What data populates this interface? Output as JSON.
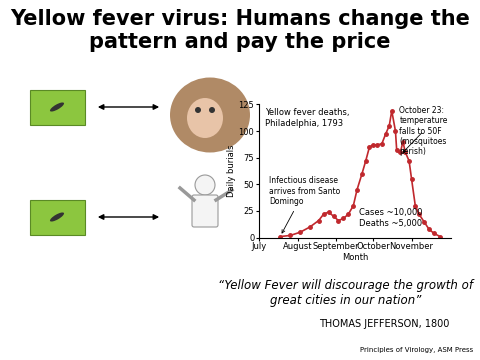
{
  "slide": {
    "title": "Yellow fever virus: Humans change the pattern and pay the price",
    "quote": "“Yellow Fever will discourage the growth of great cities in our nation”",
    "attribution": "THOMAS JEFFERSON, 1800",
    "credit": "Principles of Virology, ASM Press"
  },
  "chart_data": {
    "type": "line",
    "title": "Yellow fever deaths, Philadelphia, 1793",
    "x_label": "Month",
    "y_label": "Daily burials",
    "x": [
      17,
      25,
      33,
      41,
      48,
      52,
      56,
      60,
      64,
      68,
      72,
      76,
      79,
      83,
      86,
      89,
      92,
      95,
      99,
      102,
      105,
      107,
      110,
      111,
      114,
      116,
      118,
      121,
      123,
      126,
      129,
      133,
      137,
      141,
      146
    ],
    "values": [
      1,
      2,
      5,
      10,
      16,
      22,
      24,
      20,
      16,
      18,
      22,
      30,
      45,
      60,
      72,
      85,
      87,
      87,
      88,
      97,
      105,
      119,
      100,
      82,
      80,
      90,
      80,
      72,
      55,
      30,
      22,
      15,
      8,
      4,
      1
    ],
    "color": "#c0282d",
    "marker": "circle",
    "line_style": "solid",
    "xlim": [
      0,
      155
    ],
    "xticks": [
      {
        "value": 0,
        "label": "July"
      },
      {
        "value": 31,
        "label": "August"
      },
      {
        "value": 62,
        "label": "September"
      },
      {
        "value": 92,
        "label": "October"
      },
      {
        "value": 123,
        "label": "November"
      }
    ],
    "ylim": [
      0,
      125
    ],
    "yticks": [
      0,
      25,
      50,
      75,
      100,
      125
    ],
    "annotations": [
      {
        "text": "Infectious disease arrives from Santo Domingo",
        "x": 17
      },
      {
        "text": "October 23: temperature falls to 50F (mosquitoes perish)",
        "x": 114
      }
    ],
    "notes": [
      "Cases ~10,000",
      "Deaths ~5,000"
    ]
  }
}
